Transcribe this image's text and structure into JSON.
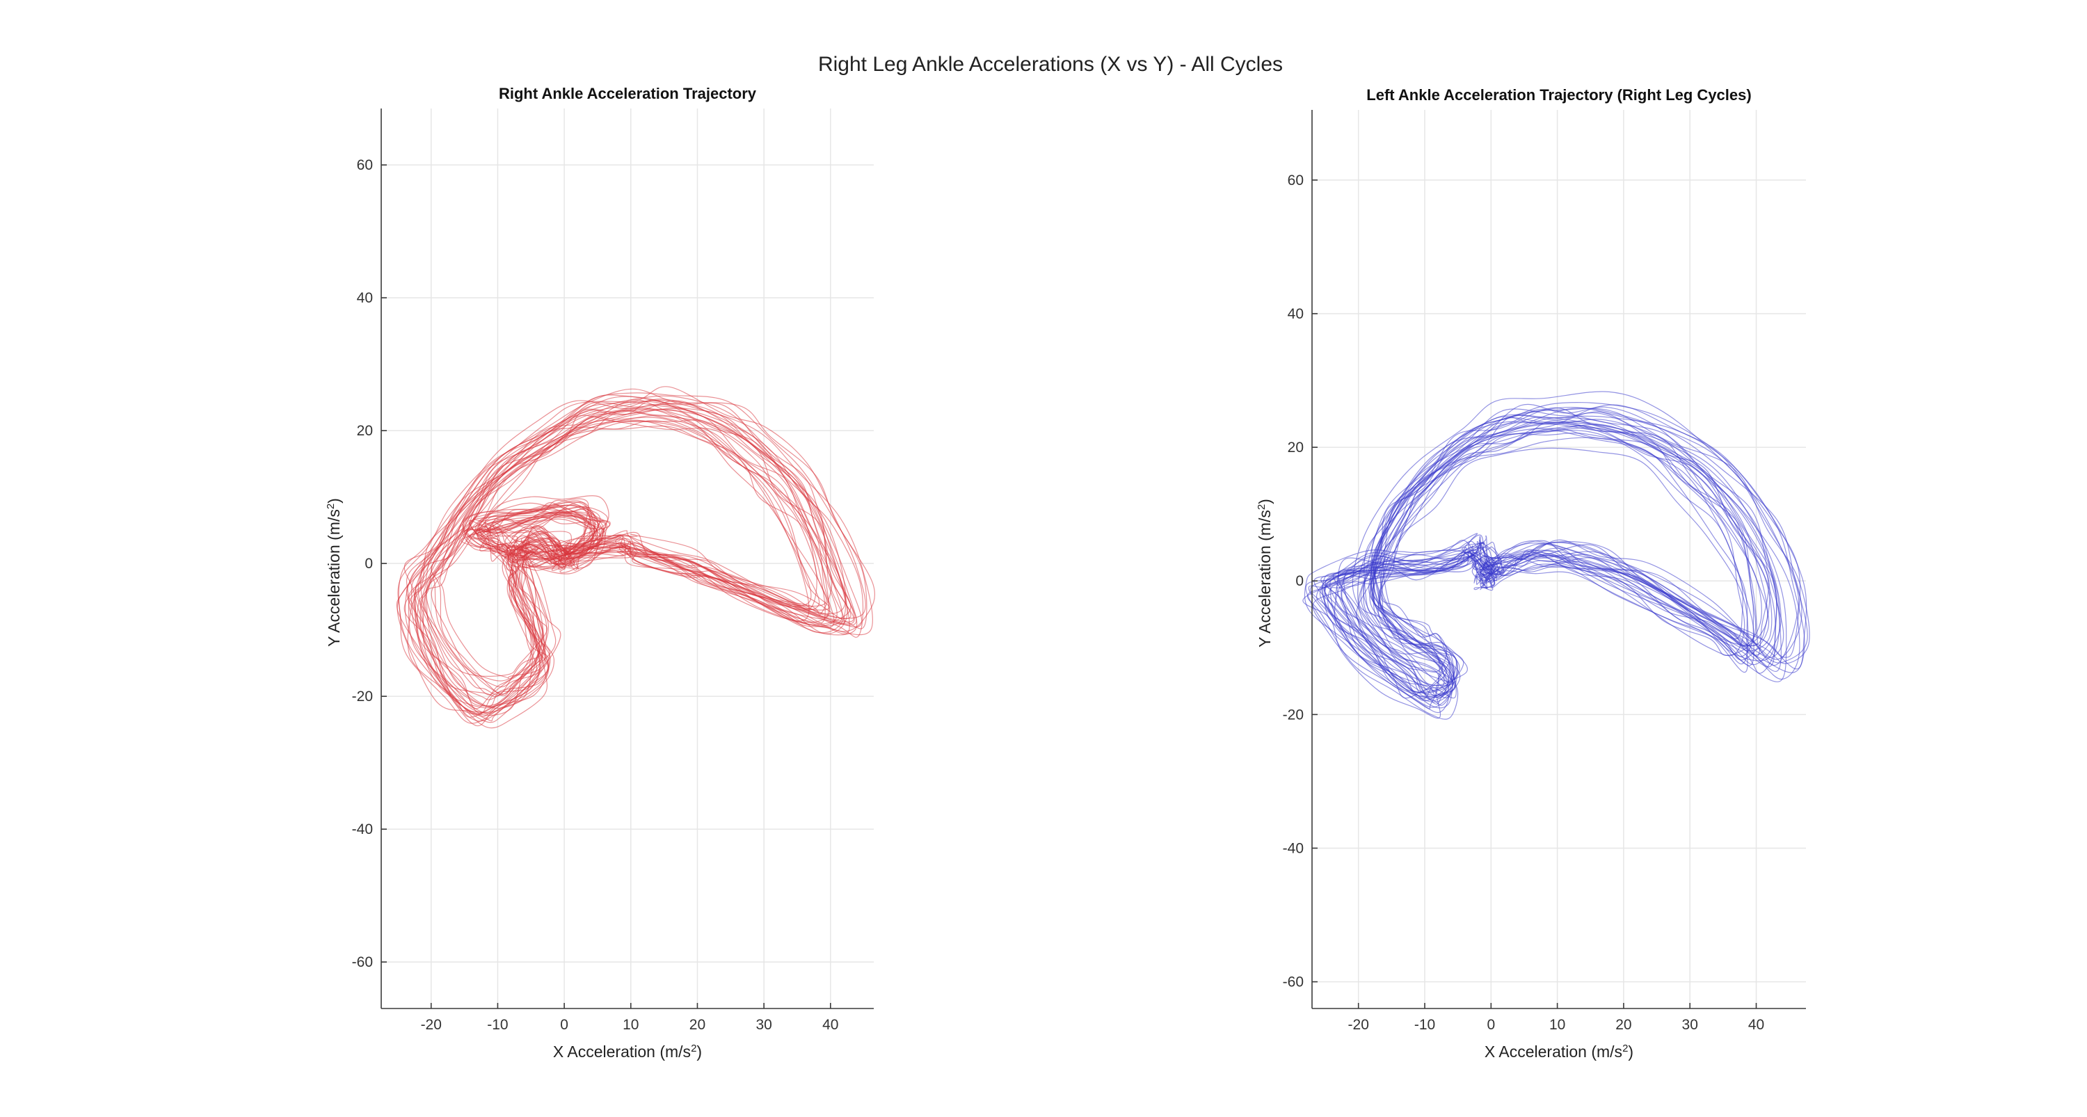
{
  "figure": {
    "suptitle": "Right Leg Ankle Accelerations (X vs Y) - All Cycles"
  },
  "chart_data": [
    {
      "type": "line",
      "title": "Right Ankle Acceleration Trajectory",
      "xlabel": "X Acceleration (m/s",
      "ylabel": "Y Acceleration (m/s",
      "label_superscript": "2",
      "label_close": ")",
      "xlim": [
        -27.5,
        46.5
      ],
      "ylim": [
        -67,
        68.5
      ],
      "xticks": [
        -20,
        -10,
        0,
        10,
        20,
        30,
        40
      ],
      "yticks": [
        -60,
        -40,
        -20,
        0,
        20,
        40,
        60
      ],
      "xtick_labels": [
        "-20",
        "-10",
        "0",
        "10",
        "20",
        "30",
        "40"
      ],
      "ytick_labels": [
        "-60",
        "-40",
        "-20",
        "0",
        "20",
        "40",
        "60"
      ],
      "grid": true,
      "line_color": "#d9363e",
      "cycle_count": 30,
      "series": [
        {
          "x": [
            0,
            3,
            9,
            10,
            17,
            22,
            30,
            37,
            41,
            40,
            37,
            33,
            28,
            22,
            15,
            9,
            3,
            -2,
            -9,
            -14,
            -18,
            -21,
            -22,
            -20,
            -16,
            -12,
            -9,
            -5,
            -3,
            -4,
            -6,
            -7,
            -7,
            -8,
            -10,
            -12,
            -13,
            -10,
            -5,
            0,
            4,
            5,
            3,
            -1,
            -5,
            -7,
            -4,
            -1,
            0
          ],
          "y": [
            1,
            2,
            3,
            2,
            0,
            -2,
            -5,
            -8,
            -8,
            -2,
            6,
            12,
            17,
            21,
            23,
            23,
            22,
            19,
            14,
            8,
            2,
            -2,
            -6,
            -12,
            -18,
            -21,
            -20,
            -17,
            -14,
            -10,
            -5,
            -1,
            1,
            2,
            3,
            4,
            5,
            6,
            7,
            8,
            7,
            5,
            2,
            1,
            1,
            2,
            4,
            2,
            1
          ]
        }
      ]
    },
    {
      "type": "line",
      "title": "Left Ankle Acceleration Trajectory (Right Leg Cycles)",
      "xlabel": "X Acceleration (m/s",
      "ylabel": "Y Acceleration (m/s",
      "label_superscript": "2",
      "label_close": ")",
      "xlim": [
        -27,
        47.5
      ],
      "ylim": [
        -64,
        70.5
      ],
      "xticks": [
        -20,
        -10,
        0,
        10,
        20,
        30,
        40
      ],
      "yticks": [
        -60,
        -40,
        -20,
        0,
        20,
        40,
        60
      ],
      "xtick_labels": [
        "-20",
        "-10",
        "0",
        "10",
        "20",
        "30",
        "40"
      ],
      "ytick_labels": [
        "-60",
        "-40",
        "-20",
        "0",
        "20",
        "40",
        "60"
      ],
      "grid": true,
      "line_color": "#3b3bcc",
      "cycle_count": 30,
      "series": [
        {
          "x": [
            -1,
            1,
            4,
            8,
            14,
            22,
            30,
            37,
            41,
            43,
            42,
            38,
            32,
            25,
            17,
            9,
            2,
            -4,
            -10,
            -14,
            -17,
            -18,
            -16,
            -12,
            -8,
            -6,
            -7,
            -10,
            -14,
            -19,
            -23,
            -25,
            -22,
            -17,
            -11,
            -6,
            -3,
            -2,
            -1,
            0,
            -1
          ],
          "y": [
            1,
            2,
            3,
            4,
            3,
            0,
            -5,
            -9,
            -12,
            -8,
            0,
            9,
            16,
            21,
            24,
            24,
            23,
            20,
            15,
            10,
            4,
            -2,
            -6,
            -9,
            -11,
            -14,
            -17,
            -17,
            -14,
            -10,
            -5,
            -1,
            1,
            2,
            2,
            3,
            4,
            5,
            3,
            1,
            1
          ]
        }
      ]
    }
  ]
}
